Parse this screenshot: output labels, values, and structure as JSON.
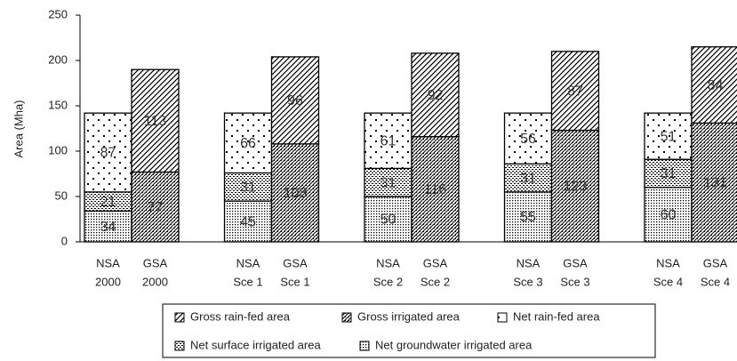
{
  "chart_data": {
    "type": "bar",
    "stacked": true,
    "y_label": "Area (Mha)",
    "categories": [
      [
        "NSA",
        "2000"
      ],
      [
        "GSA",
        "2000"
      ],
      [
        "NSA",
        "Sce 1"
      ],
      [
        "GSA",
        "Sce 1"
      ],
      [
        "NSA",
        "Sce 2"
      ],
      [
        "GSA",
        "Sce 2"
      ],
      [
        "NSA",
        "Sce 3"
      ],
      [
        "GSA",
        "Sce 3"
      ],
      [
        "NSA",
        "Sce 4"
      ],
      [
        "GSA",
        "Sce 4"
      ]
    ],
    "series": [
      {
        "name": "Gross rain-fed area",
        "color": "#000000",
        "pattern": "diagonal",
        "values": [
          null,
          113,
          null,
          96,
          null,
          92,
          null,
          87,
          null,
          84
        ]
      },
      {
        "name": "Gross irrigated area",
        "color": "#000000",
        "pattern": "dense-diagonal",
        "values": [
          null,
          77,
          null,
          108,
          null,
          116,
          null,
          123,
          null,
          131
        ]
      },
      {
        "name": "Net rain-fed area",
        "color": "#000000",
        "pattern": "sparse-dots",
        "values": [
          87,
          null,
          66,
          null,
          61,
          null,
          56,
          null,
          51,
          null
        ]
      },
      {
        "name": "Net surface irrigated area",
        "color": "#000000",
        "pattern": "checker",
        "values": [
          21,
          null,
          31,
          null,
          31,
          null,
          31,
          null,
          31,
          null
        ]
      },
      {
        "name": "Net groundwater irrigated area",
        "color": "#000000",
        "pattern": "dense-dots",
        "values": [
          34,
          null,
          45,
          null,
          50,
          null,
          55,
          null,
          60,
          null
        ]
      }
    ],
    "ylim": [
      0,
      250
    ],
    "yticks": [
      0,
      50,
      100,
      150,
      200,
      250
    ],
    "grid": false,
    "legend": "bottom"
  }
}
